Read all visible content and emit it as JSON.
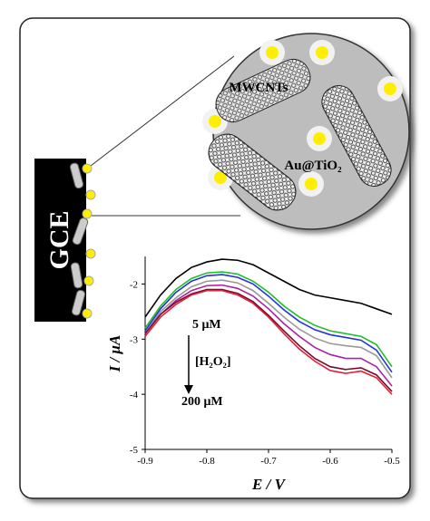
{
  "labels": {
    "electrode": "GCE",
    "nanotubes": "MWCNTs",
    "particles": "Au@TiO₂"
  },
  "chart_data": {
    "type": "line",
    "xlabel": "E / V",
    "ylabel": "I / μA",
    "annotations": [
      "5 μM",
      "[H₂O₂]",
      "200 μM"
    ],
    "x": [
      -0.9,
      -0.875,
      -0.85,
      -0.825,
      -0.8,
      -0.775,
      -0.75,
      -0.725,
      -0.7,
      -0.675,
      -0.65,
      -0.625,
      -0.6,
      -0.575,
      -0.55,
      -0.525,
      -0.5
    ],
    "xlim": [
      -0.9,
      -0.5
    ],
    "xticks": [
      -0.9,
      -0.8,
      -0.7,
      -0.6,
      -0.5
    ],
    "ylim": [
      -5,
      -1.5
    ],
    "yticks": [
      -2,
      -3,
      -4,
      -5
    ],
    "series": [
      {
        "color": "#000000",
        "values": [
          -2.6,
          -2.2,
          -1.9,
          -1.7,
          -1.6,
          -1.55,
          -1.57,
          -1.65,
          -1.8,
          -1.95,
          -2.1,
          -2.2,
          -2.25,
          -2.3,
          -2.35,
          -2.45,
          -2.55
        ]
      },
      {
        "color": "#1fbf2a",
        "values": [
          -2.8,
          -2.4,
          -2.1,
          -1.9,
          -1.8,
          -1.78,
          -1.82,
          -1.95,
          -2.15,
          -2.4,
          -2.6,
          -2.75,
          -2.85,
          -2.9,
          -2.95,
          -3.1,
          -3.5
        ]
      },
      {
        "color": "#2233dd",
        "values": [
          -2.85,
          -2.45,
          -2.15,
          -1.95,
          -1.85,
          -1.83,
          -1.88,
          -2.0,
          -2.22,
          -2.47,
          -2.68,
          -2.83,
          -2.92,
          -2.97,
          -3.02,
          -3.2,
          -3.6
        ]
      },
      {
        "color": "#999999",
        "values": [
          -2.9,
          -2.5,
          -2.25,
          -2.05,
          -1.95,
          -1.93,
          -1.98,
          -2.12,
          -2.35,
          -2.6,
          -2.82,
          -2.98,
          -3.08,
          -3.12,
          -3.15,
          -3.3,
          -3.7
        ]
      },
      {
        "color": "#aa22aa",
        "values": [
          -2.9,
          -2.55,
          -2.3,
          -2.12,
          -2.03,
          -2.02,
          -2.08,
          -2.22,
          -2.45,
          -2.72,
          -2.95,
          -3.15,
          -3.28,
          -3.35,
          -3.35,
          -3.5,
          -3.85
        ]
      },
      {
        "color": "#7a0a2a",
        "values": [
          -2.9,
          -2.55,
          -2.33,
          -2.18,
          -2.1,
          -2.1,
          -2.17,
          -2.32,
          -2.57,
          -2.85,
          -3.12,
          -3.35,
          -3.5,
          -3.55,
          -3.52,
          -3.65,
          -3.95
        ]
      },
      {
        "color": "#e0203a",
        "values": [
          -2.95,
          -2.6,
          -2.37,
          -2.2,
          -2.12,
          -2.12,
          -2.2,
          -2.35,
          -2.6,
          -2.9,
          -3.18,
          -3.4,
          -3.57,
          -3.62,
          -3.58,
          -3.7,
          -4.0
        ]
      }
    ]
  }
}
